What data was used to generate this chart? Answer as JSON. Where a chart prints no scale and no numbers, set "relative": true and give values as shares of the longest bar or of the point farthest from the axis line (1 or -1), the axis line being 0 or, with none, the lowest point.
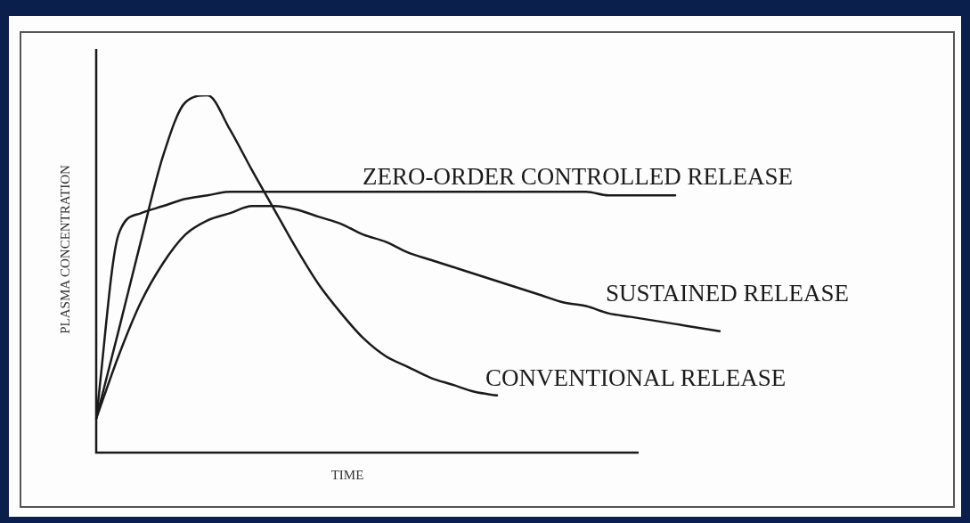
{
  "chart_data": {
    "type": "line",
    "relative": true,
    "xlabel": "TIME",
    "ylabel": "PLASMA CONCENTRATION",
    "legend": false,
    "marker": "none",
    "line_style": "solid",
    "categories": [
      null,
      null,
      null,
      null,
      null,
      null,
      null,
      null,
      null,
      null,
      null,
      null,
      null,
      null,
      null,
      null,
      null,
      null,
      null,
      null,
      null,
      null,
      null,
      null,
      null,
      null,
      null,
      null,
      null
    ],
    "series": [
      {
        "name": "CONVENTIONAL RELEASE",
        "color": "#1a1a1a",
        "values": [
          0.095,
          0.34,
          0.59,
          0.83,
          0.98,
          1,
          0.905,
          0.79,
          0.68,
          0.57,
          0.47,
          0.39,
          0.32,
          0.27,
          0.24,
          0.21,
          0.19,
          0.17,
          0.16,
          null,
          null,
          null,
          null,
          null,
          null,
          null,
          null,
          null,
          null
        ]
      },
      {
        "name": "ZERO-ORDER CONTROLLED RELEASE",
        "color": "#1a1a1a",
        "values": [
          0.095,
          0.61,
          0.67,
          0.69,
          0.71,
          0.72,
          0.73,
          0.73,
          0.73,
          0.73,
          0.73,
          0.73,
          0.73,
          0.73,
          0.73,
          0.73,
          0.73,
          0.73,
          0.73,
          0.73,
          0.73,
          0.73,
          0.73,
          0.72,
          0.72,
          0.72,
          0.72,
          null,
          null
        ]
      },
      {
        "name": "SUSTAINED RELEASE",
        "color": "#1a1a1a",
        "values": [
          0.095,
          0.27,
          0.42,
          0.53,
          0.61,
          0.65,
          0.67,
          0.69,
          0.69,
          0.68,
          0.66,
          0.64,
          0.61,
          0.59,
          0.56,
          0.54,
          0.52,
          0.5,
          0.48,
          0.46,
          0.44,
          0.42,
          0.41,
          0.39,
          0.38,
          0.37,
          0.36,
          0.35,
          0.34
        ]
      }
    ]
  }
}
